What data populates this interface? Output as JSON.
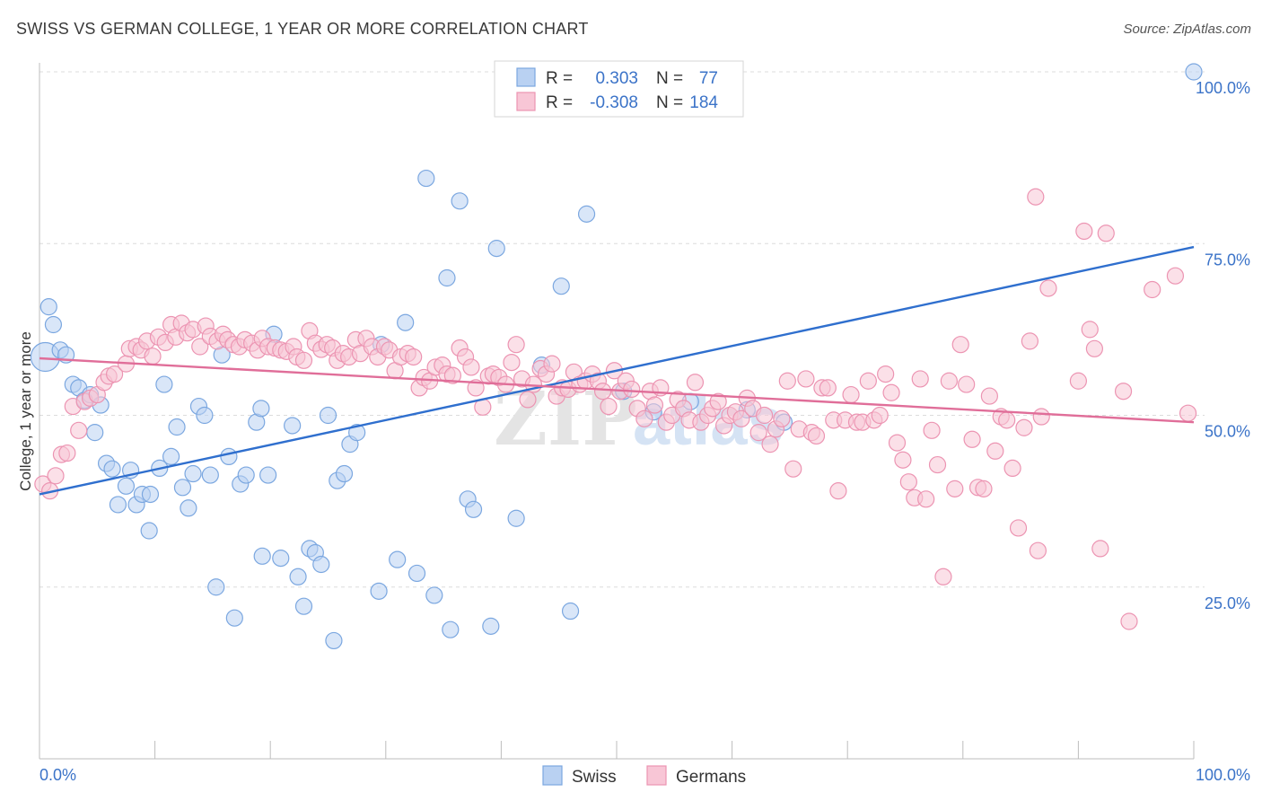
{
  "title": "SWISS VS GERMAN COLLEGE, 1 YEAR OR MORE CORRELATION CHART",
  "source": "Source: ZipAtlas.com",
  "watermark": "ZIPatlas",
  "chart_data": {
    "type": "scatter",
    "ylabel": "College, 1 year or more",
    "xlim": [
      0,
      100
    ],
    "ylim": [
      0,
      104
    ],
    "x_tick_labels": [
      "0.0%",
      "100.0%"
    ],
    "y_ticks": [
      {
        "value": 25,
        "label": "25.0%"
      },
      {
        "value": 50,
        "label": "50.0%"
      },
      {
        "value": 75,
        "label": "75.0%"
      },
      {
        "value": 100,
        "label": "100.0%"
      }
    ],
    "grid": "dashed-horizontal",
    "legend_top": [
      {
        "r_label": "R =",
        "r_value": "0.303",
        "n_label": "N =",
        "n_value": "77"
      },
      {
        "r_label": "R =",
        "r_value": "-0.308",
        "n_label": "N =",
        "n_value": "184"
      }
    ],
    "series": [
      {
        "name": "Swiss",
        "color": "#7ba7e0",
        "fill": "#b9d1f2",
        "line_color": "#2f6fce",
        "trend": {
          "x0": 0,
          "y0": 38.5,
          "x1": 100,
          "y1": 74.5
        },
        "points": [
          [
            0.5,
            58.5
          ],
          [
            0.8,
            65.8
          ],
          [
            1.2,
            63.2
          ],
          [
            1.8,
            59.5
          ],
          [
            2.3,
            58.8
          ],
          [
            2.9,
            54.5
          ],
          [
            3.4,
            54.0
          ],
          [
            3.9,
            52.2
          ],
          [
            4.4,
            53.0
          ],
          [
            4.8,
            47.5
          ],
          [
            5.3,
            51.5
          ],
          [
            5.8,
            43.0
          ],
          [
            6.3,
            42.2
          ],
          [
            6.8,
            37.0
          ],
          [
            7.5,
            39.7
          ],
          [
            7.9,
            42.0
          ],
          [
            8.4,
            37.0
          ],
          [
            8.9,
            38.5
          ],
          [
            9.6,
            38.5
          ],
          [
            9.5,
            33.2
          ],
          [
            10.4,
            42.3
          ],
          [
            10.8,
            54.5
          ],
          [
            11.4,
            44.0
          ],
          [
            11.9,
            48.3
          ],
          [
            12.4,
            39.5
          ],
          [
            12.9,
            36.5
          ],
          [
            13.3,
            41.5
          ],
          [
            13.8,
            51.3
          ],
          [
            14.3,
            50.0
          ],
          [
            14.8,
            41.3
          ],
          [
            15.3,
            25.0
          ],
          [
            15.8,
            58.8
          ],
          [
            16.4,
            44.0
          ],
          [
            16.9,
            20.5
          ],
          [
            17.4,
            40.0
          ],
          [
            17.9,
            41.3
          ],
          [
            18.8,
            49.0
          ],
          [
            19.2,
            51.0
          ],
          [
            19.3,
            29.5
          ],
          [
            19.8,
            41.3
          ],
          [
            20.3,
            61.8
          ],
          [
            20.9,
            29.2
          ],
          [
            21.9,
            48.5
          ],
          [
            22.4,
            26.5
          ],
          [
            22.9,
            22.2
          ],
          [
            23.4,
            30.6
          ],
          [
            23.9,
            30.0
          ],
          [
            24.4,
            28.3
          ],
          [
            25.0,
            50.0
          ],
          [
            25.5,
            17.2
          ],
          [
            25.8,
            40.5
          ],
          [
            26.4,
            41.5
          ],
          [
            26.9,
            45.8
          ],
          [
            27.5,
            47.5
          ],
          [
            29.4,
            24.4
          ],
          [
            29.6,
            60.3
          ],
          [
            31.0,
            29.0
          ],
          [
            31.7,
            63.5
          ],
          [
            32.7,
            27.0
          ],
          [
            33.5,
            84.5
          ],
          [
            34.2,
            23.8
          ],
          [
            35.3,
            70.0
          ],
          [
            35.6,
            18.8
          ],
          [
            36.4,
            81.2
          ],
          [
            37.1,
            37.8
          ],
          [
            37.6,
            36.3
          ],
          [
            39.1,
            19.3
          ],
          [
            39.6,
            74.3
          ],
          [
            41.3,
            35.0
          ],
          [
            43.5,
            57.3
          ],
          [
            45.2,
            68.8
          ],
          [
            46.0,
            21.5
          ],
          [
            47.4,
            79.3
          ],
          [
            50.6,
            53.5
          ],
          [
            53.2,
            50.5
          ],
          [
            56.4,
            52.0
          ],
          [
            61.3,
            50.8
          ],
          [
            64.5,
            49.0
          ],
          [
            100.0,
            100.0
          ]
        ]
      },
      {
        "name": "Germans",
        "color": "#ec94b2",
        "fill": "#f8c6d6",
        "line_color": "#e06e99",
        "trend": {
          "x0": 0,
          "y0": 58.3,
          "x1": 100,
          "y1": 49.0
        },
        "points": [
          [
            0.3,
            40.0
          ],
          [
            0.9,
            39.0
          ],
          [
            1.4,
            41.2
          ],
          [
            1.9,
            44.3
          ],
          [
            2.4,
            44.5
          ],
          [
            2.9,
            51.3
          ],
          [
            3.4,
            47.8
          ],
          [
            3.9,
            52.0
          ],
          [
            4.4,
            52.5
          ],
          [
            5.0,
            53.0
          ],
          [
            5.6,
            54.8
          ],
          [
            6.0,
            55.7
          ],
          [
            6.5,
            56.0
          ],
          [
            7.5,
            57.5
          ],
          [
            7.8,
            59.7
          ],
          [
            8.4,
            60.0
          ],
          [
            8.8,
            59.5
          ],
          [
            9.3,
            60.8
          ],
          [
            9.8,
            58.6
          ],
          [
            10.3,
            61.4
          ],
          [
            10.9,
            60.6
          ],
          [
            11.4,
            63.2
          ],
          [
            11.8,
            61.4
          ],
          [
            12.3,
            63.4
          ],
          [
            12.8,
            62.0
          ],
          [
            13.3,
            62.5
          ],
          [
            13.9,
            60.0
          ],
          [
            14.4,
            63.0
          ],
          [
            14.8,
            61.5
          ],
          [
            15.4,
            60.8
          ],
          [
            15.9,
            61.8
          ],
          [
            16.3,
            61.0
          ],
          [
            16.8,
            60.3
          ],
          [
            17.3,
            60.0
          ],
          [
            17.8,
            61.0
          ],
          [
            18.4,
            60.5
          ],
          [
            18.9,
            59.5
          ],
          [
            19.3,
            61.2
          ],
          [
            19.8,
            60.0
          ],
          [
            20.4,
            59.8
          ],
          [
            20.9,
            59.5
          ],
          [
            21.4,
            59.3
          ],
          [
            22.0,
            60.0
          ],
          [
            22.3,
            58.5
          ],
          [
            22.9,
            58.0
          ],
          [
            23.4,
            62.3
          ],
          [
            23.9,
            60.5
          ],
          [
            24.4,
            59.6
          ],
          [
            24.9,
            60.3
          ],
          [
            25.4,
            59.8
          ],
          [
            25.8,
            58.0
          ],
          [
            26.3,
            59.0
          ],
          [
            26.8,
            58.5
          ],
          [
            27.4,
            61.0
          ],
          [
            27.8,
            59.0
          ],
          [
            28.3,
            61.2
          ],
          [
            28.8,
            60.0
          ],
          [
            29.3,
            58.5
          ],
          [
            29.9,
            60.0
          ],
          [
            30.3,
            59.5
          ],
          [
            30.8,
            56.5
          ],
          [
            31.3,
            58.5
          ],
          [
            31.9,
            59.0
          ],
          [
            32.4,
            58.5
          ],
          [
            32.9,
            54.0
          ],
          [
            33.3,
            55.5
          ],
          [
            33.8,
            55.0
          ],
          [
            34.3,
            57.0
          ],
          [
            34.9,
            57.3
          ],
          [
            35.3,
            56.0
          ],
          [
            35.8,
            55.8
          ],
          [
            36.4,
            59.8
          ],
          [
            36.9,
            58.5
          ],
          [
            37.4,
            57.0
          ],
          [
            37.8,
            54.0
          ],
          [
            38.4,
            51.2
          ],
          [
            38.9,
            55.7
          ],
          [
            39.3,
            56.0
          ],
          [
            39.8,
            55.5
          ],
          [
            40.4,
            54.5
          ],
          [
            40.9,
            57.7
          ],
          [
            41.3,
            60.3
          ],
          [
            41.8,
            55.3
          ],
          [
            42.3,
            52.3
          ],
          [
            42.8,
            54.5
          ],
          [
            43.4,
            56.8
          ],
          [
            43.9,
            56.0
          ],
          [
            44.4,
            57.5
          ],
          [
            44.8,
            52.8
          ],
          [
            45.3,
            54.0
          ],
          [
            45.8,
            53.8
          ],
          [
            46.3,
            56.3
          ],
          [
            46.8,
            54.5
          ],
          [
            47.3,
            55.0
          ],
          [
            47.9,
            56.0
          ],
          [
            48.4,
            55.0
          ],
          [
            48.8,
            53.5
          ],
          [
            49.3,
            51.3
          ],
          [
            49.8,
            56.5
          ],
          [
            50.3,
            53.5
          ],
          [
            50.8,
            55.0
          ],
          [
            51.3,
            53.8
          ],
          [
            51.8,
            51.0
          ],
          [
            52.4,
            49.5
          ],
          [
            52.9,
            53.5
          ],
          [
            53.3,
            51.5
          ],
          [
            53.8,
            54.0
          ],
          [
            54.3,
            49.0
          ],
          [
            54.8,
            50.0
          ],
          [
            55.3,
            52.3
          ],
          [
            55.8,
            51.0
          ],
          [
            56.3,
            49.3
          ],
          [
            56.8,
            54.8
          ],
          [
            57.3,
            49.0
          ],
          [
            57.9,
            50.0
          ],
          [
            58.3,
            51.0
          ],
          [
            58.8,
            52.0
          ],
          [
            59.3,
            48.5
          ],
          [
            59.8,
            50.0
          ],
          [
            60.3,
            50.5
          ],
          [
            60.8,
            49.5
          ],
          [
            61.3,
            52.5
          ],
          [
            61.8,
            51.0
          ],
          [
            62.3,
            47.5
          ],
          [
            62.8,
            50.0
          ],
          [
            63.3,
            45.8
          ],
          [
            63.8,
            48.0
          ],
          [
            64.3,
            49.5
          ],
          [
            64.8,
            55.0
          ],
          [
            65.3,
            42.2
          ],
          [
            65.8,
            48.0
          ],
          [
            66.4,
            55.3
          ],
          [
            66.9,
            47.5
          ],
          [
            67.3,
            47.0
          ],
          [
            67.8,
            54.0
          ],
          [
            68.3,
            54.0
          ],
          [
            68.8,
            49.3
          ],
          [
            69.2,
            39.0
          ],
          [
            69.8,
            49.3
          ],
          [
            70.3,
            53.0
          ],
          [
            70.8,
            49.0
          ],
          [
            71.3,
            49.0
          ],
          [
            71.8,
            55.0
          ],
          [
            72.3,
            49.3
          ],
          [
            72.8,
            50.0
          ],
          [
            73.3,
            56.0
          ],
          [
            73.8,
            53.3
          ],
          [
            74.3,
            46.0
          ],
          [
            74.8,
            43.5
          ],
          [
            75.3,
            40.3
          ],
          [
            75.8,
            38.0
          ],
          [
            76.3,
            55.3
          ],
          [
            76.8,
            37.8
          ],
          [
            77.3,
            47.8
          ],
          [
            77.8,
            42.8
          ],
          [
            78.3,
            26.5
          ],
          [
            78.8,
            55.0
          ],
          [
            79.3,
            39.3
          ],
          [
            79.8,
            60.3
          ],
          [
            80.3,
            54.5
          ],
          [
            80.8,
            46.5
          ],
          [
            81.3,
            39.5
          ],
          [
            81.8,
            39.3
          ],
          [
            82.3,
            52.8
          ],
          [
            82.8,
            44.8
          ],
          [
            83.3,
            49.8
          ],
          [
            83.8,
            49.3
          ],
          [
            84.3,
            42.3
          ],
          [
            84.8,
            33.6
          ],
          [
            85.3,
            48.2
          ],
          [
            85.8,
            60.8
          ],
          [
            86.3,
            81.8
          ],
          [
            86.5,
            30.3
          ],
          [
            86.8,
            49.8
          ],
          [
            87.4,
            68.5
          ],
          [
            90.0,
            55.0
          ],
          [
            90.5,
            76.8
          ],
          [
            91.0,
            62.5
          ],
          [
            91.4,
            59.7
          ],
          [
            91.9,
            30.6
          ],
          [
            92.4,
            76.5
          ],
          [
            93.9,
            53.5
          ],
          [
            94.4,
            20.0
          ],
          [
            96.4,
            68.3
          ],
          [
            98.4,
            70.3
          ],
          [
            99.5,
            50.3
          ]
        ]
      }
    ]
  },
  "bottom_legend": [
    "Swiss",
    "Germans"
  ]
}
